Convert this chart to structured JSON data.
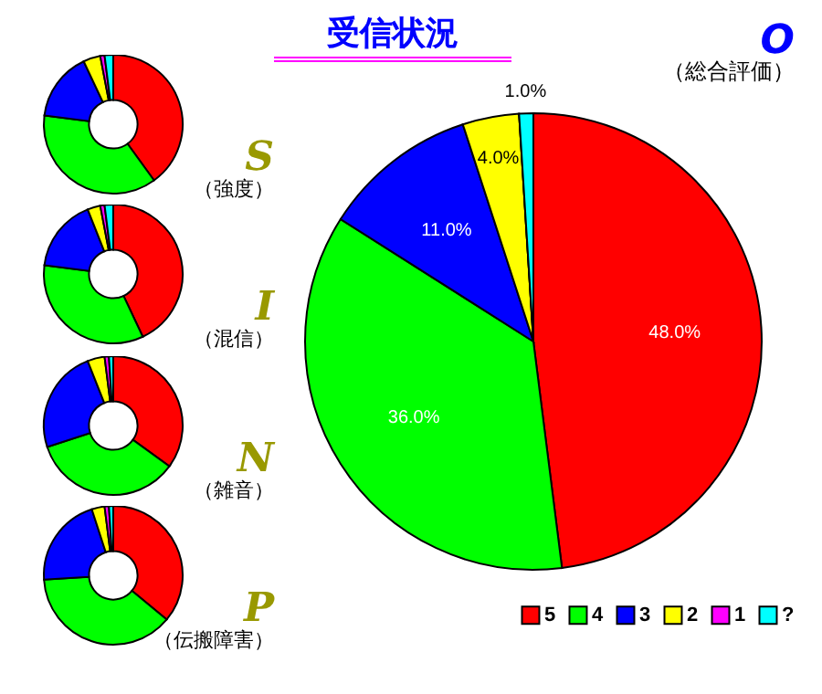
{
  "chart_data": [
    {
      "type": "donut",
      "title": "S",
      "subtitle": "（強度）",
      "annotations": [
        "受信状況"
      ],
      "categories": [
        null,
        null,
        null,
        null,
        null,
        null
      ],
      "values": [
        40,
        37,
        16,
        4,
        1,
        2
      ],
      "colors": [
        "#ff0000",
        "#00ff00",
        "#0000ff",
        "#ffff00",
        "#ff00ff",
        "#00ffff"
      ]
    },
    {
      "type": "donut",
      "title": "I",
      "subtitle": "（混信）",
      "categories": [
        null,
        null,
        null,
        null,
        null,
        null
      ],
      "values": [
        43,
        34,
        17,
        3,
        1,
        2
      ],
      "colors": [
        "#ff0000",
        "#00ff00",
        "#0000ff",
        "#ffff00",
        "#ff00ff",
        "#00ffff"
      ]
    },
    {
      "type": "donut",
      "title": "N",
      "subtitle": "（雑音）",
      "categories": [
        null,
        null,
        null,
        null,
        null,
        null
      ],
      "values": [
        35,
        35,
        24,
        4,
        1,
        1
      ],
      "colors": [
        "#ff0000",
        "#00ff00",
        "#0000ff",
        "#ffff00",
        "#ff00ff",
        "#00ffff"
      ]
    },
    {
      "type": "donut",
      "title": "P",
      "subtitle": "（伝搬障害）",
      "categories": [
        null,
        null,
        null,
        null,
        null,
        null
      ],
      "values": [
        36,
        38,
        21,
        3,
        1,
        1
      ],
      "colors": [
        "#ff0000",
        "#00ff00",
        "#0000ff",
        "#ffff00",
        "#ff00ff",
        "#00ffff"
      ]
    },
    {
      "type": "pie",
      "title": "O",
      "subtitle": "（総合評価）",
      "categories": [
        "5",
        "4",
        "3",
        "2",
        "1",
        "?"
      ],
      "values": [
        48,
        36,
        11,
        4,
        0,
        1
      ],
      "colors": [
        "#ff0000",
        "#00ff00",
        "#0000ff",
        "#ffff00",
        "#ff00ff",
        "#00ffff"
      ],
      "value_labels": [
        "48.0%",
        "36.0%",
        "11.0%",
        "4.0%",
        null,
        "1.0%"
      ],
      "legend": "bottom right"
    }
  ]
}
